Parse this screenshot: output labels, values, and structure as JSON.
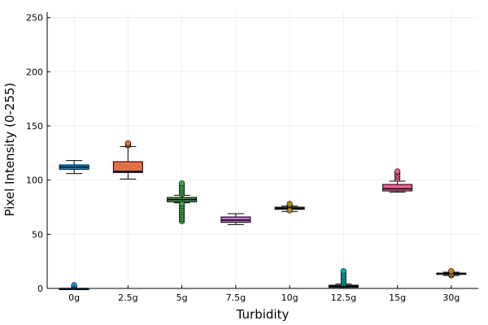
{
  "chart_data": {
    "type": "box",
    "title": "",
    "xlabel": "Turbidity",
    "ylabel": "Pixel Intensity (0-255)",
    "ylim": [
      0,
      255
    ],
    "yticks": [
      0,
      50,
      100,
      150,
      200,
      250
    ],
    "grid": true,
    "legend": "none",
    "categories": [
      "0g",
      "2.5g",
      "5g",
      "7.5g",
      "10g",
      "12.5g",
      "15g",
      "30g"
    ],
    "series": [
      {
        "category": "0g",
        "color": "#009AFA",
        "whisker_low": 0,
        "q1": 0,
        "median": 0,
        "q3": 0,
        "whisker_high": 0,
        "outliers": [
          1,
          2,
          3
        ]
      },
      {
        "category": "0g",
        "color": "#009AFA",
        "whisker_low": 106,
        "q1": 110,
        "median": 112,
        "q3": 114,
        "whisker_high": 118,
        "outliers": []
      },
      {
        "category": "2.5g",
        "color": "#E36F47",
        "whisker_low": 101,
        "q1": 107,
        "median": 108,
        "q3": 117,
        "whisker_high": 131,
        "outliers": [
          132,
          133,
          134
        ]
      },
      {
        "category": "5g",
        "color": "#3EA44E",
        "whisker_low": 79,
        "q1": 80,
        "median": 82,
        "q3": 84,
        "whisker_high": 86,
        "outliers": [
          62,
          64,
          66,
          68,
          70,
          72,
          74,
          76,
          78,
          87,
          89,
          91,
          93,
          95,
          97
        ]
      },
      {
        "category": "7.5g",
        "color": "#C271D2",
        "whisker_low": 59,
        "q1": 61,
        "median": 63,
        "q3": 66,
        "whisker_high": 69,
        "outliers": []
      },
      {
        "category": "10g",
        "color": "#AC8D18",
        "whisker_low": 71,
        "q1": 73,
        "median": 74,
        "q3": 75,
        "whisker_high": 76,
        "outliers": [
          72,
          77,
          78
        ]
      },
      {
        "category": "12.5g",
        "color": "#00A9AD",
        "whisker_low": 1,
        "q1": 1,
        "median": 2,
        "q3": 3,
        "whisker_high": 4,
        "outliers": [
          4,
          6,
          8,
          10,
          12,
          14,
          16
        ]
      },
      {
        "category": "15g",
        "color": "#ED5D92",
        "whisker_low": 89,
        "q1": 90,
        "median": 92,
        "q3": 96,
        "whisker_high": 99,
        "outliers": [
          101,
          103,
          105,
          107,
          108
        ]
      },
      {
        "category": "30g",
        "color": "#C68225",
        "whisker_low": 12,
        "q1": 13,
        "median": 14,
        "q3": 14,
        "whisker_high": 15,
        "outliers": [
          12,
          13,
          15,
          16
        ]
      }
    ]
  }
}
